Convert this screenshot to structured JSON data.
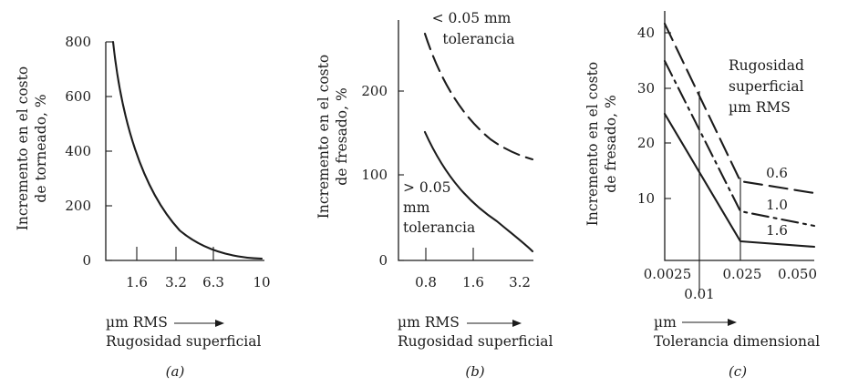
{
  "chart_data": [
    {
      "type": "line",
      "caption": "(a)",
      "ylabel": [
        "Incremento en el costo",
        "de torneado, %"
      ],
      "xlabel": [
        "µm RMS",
        "Rugosidad superficial"
      ],
      "x_ticks": [
        "1.6",
        "3.2",
        "6.3",
        "10"
      ],
      "y_ticks": [
        "0",
        "200",
        "400",
        "600",
        "800"
      ],
      "ylim": [
        0,
        800
      ],
      "series": [
        {
          "line_style": "solid",
          "x": [
            0.5,
            0.8,
            1.2,
            1.6,
            2.4,
            3.2,
            4.8,
            6.3,
            8.2,
            10
          ],
          "y": [
            800,
            640,
            470,
            350,
            220,
            140,
            70,
            35,
            15,
            5
          ]
        }
      ]
    },
    {
      "type": "line",
      "caption": "(b)",
      "ylabel": [
        "Incremento en el costo",
        "de fresado, %"
      ],
      "xlabel": [
        "µm RMS",
        "Rugosidad superficial"
      ],
      "x_ticks": [
        "0.8",
        "1.6",
        "3.2"
      ],
      "y_ticks": [
        "0",
        "100",
        "200"
      ],
      "ylim": [
        0,
        280
      ],
      "series": [
        {
          "line_style": "dashed",
          "label": [
            "< 0.05 mm",
            "tolerancia"
          ],
          "x": [
            0.8,
            1.0,
            1.2,
            1.6,
            2.0,
            2.5,
            3.2
          ],
          "y": [
            270,
            235,
            205,
            175,
            150,
            132,
            120
          ]
        },
        {
          "line_style": "solid",
          "label": [
            "> 0.05",
            "mm",
            "tolerancia"
          ],
          "x": [
            0.8,
            1.0,
            1.2,
            1.6,
            2.0,
            2.5,
            3.2
          ],
          "y": [
            152,
            120,
            95,
            65,
            42,
            22,
            5
          ]
        }
      ]
    },
    {
      "type": "line",
      "caption": "(c)",
      "ylabel": [
        "Incremento en el costo",
        "de fresado, %"
      ],
      "xlabel": [
        "µm",
        "Tolerancia dimensional"
      ],
      "x_ticks": [
        "0.0025",
        "0.025",
        "0.050"
      ],
      "x_tick_below": "0.01",
      "y_ticks": [
        "10",
        "20",
        "30",
        "40"
      ],
      "legend_title": [
        "Rugosidad",
        "superficial",
        "µm RMS"
      ],
      "series": [
        {
          "name": "0.6",
          "line_style": "dashed",
          "x": [
            0.0025,
            0.025,
            0.05
          ],
          "y": [
            41.5,
            13,
            11
          ]
        },
        {
          "name": "1.0",
          "line_style": "dash-dot",
          "x": [
            0.0025,
            0.025,
            0.05
          ],
          "y": [
            34.5,
            7.5,
            5
          ]
        },
        {
          "name": "1.6",
          "line_style": "solid",
          "x": [
            0.0025,
            0.025,
            0.05
          ],
          "y": [
            25.5,
            2.5,
            1
          ]
        }
      ],
      "reference_x": 0.01
    }
  ]
}
